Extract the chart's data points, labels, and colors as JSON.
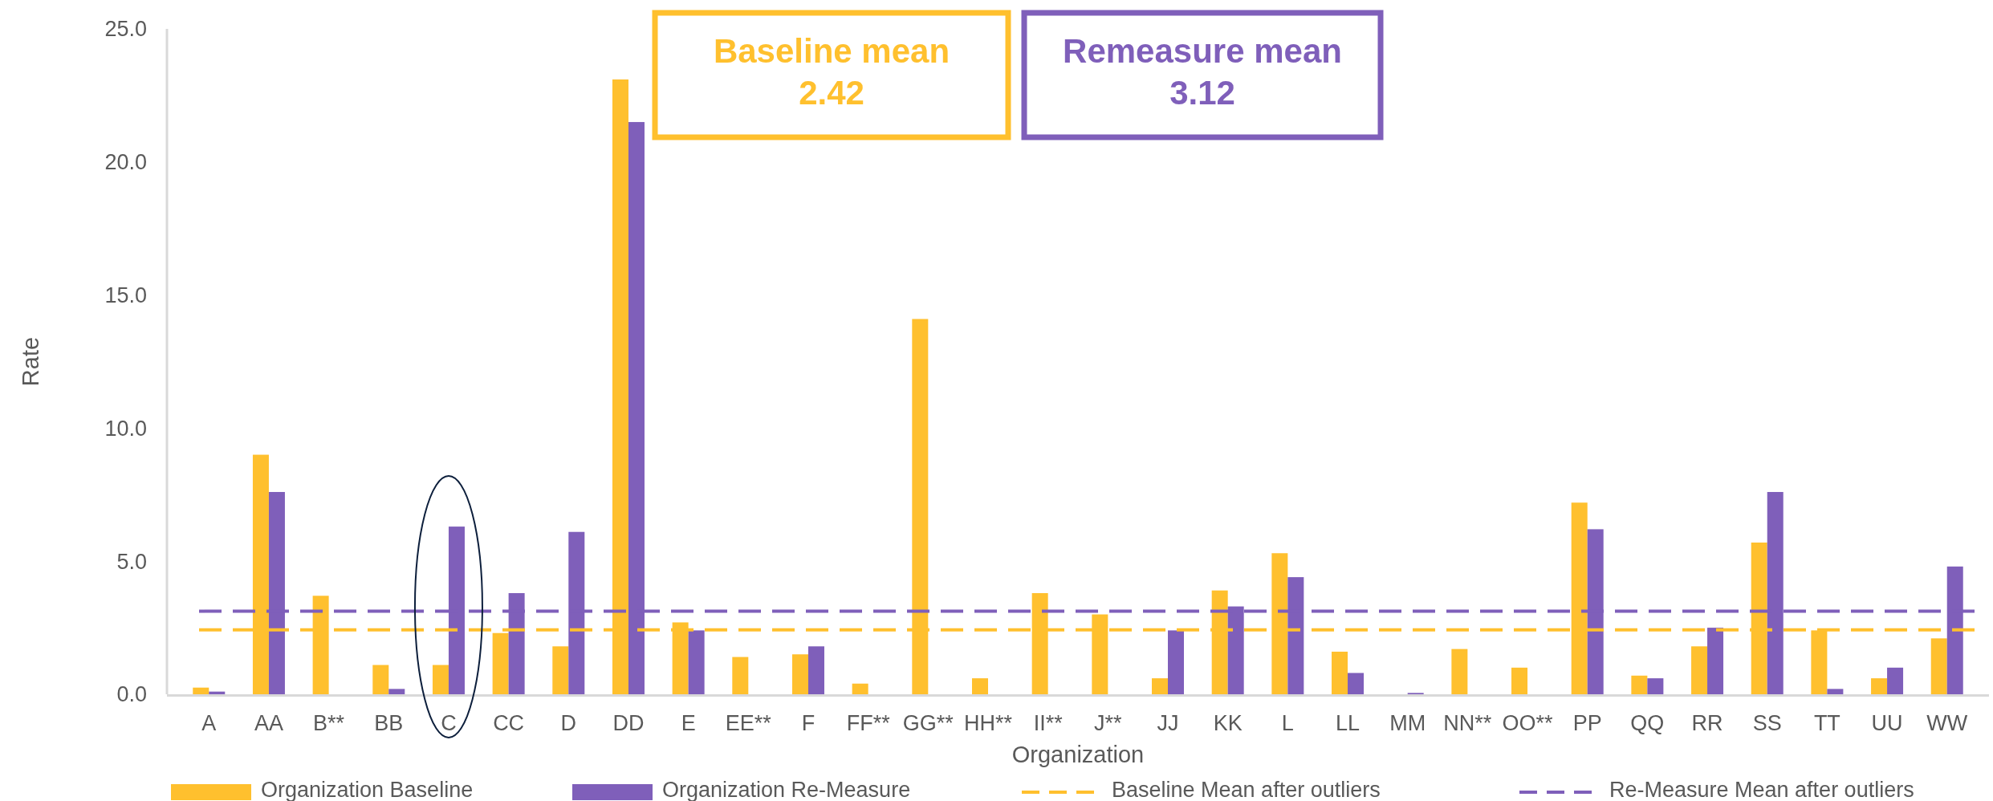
{
  "chart_data": {
    "type": "bar",
    "xlabel": "Organization",
    "ylabel": "Rate",
    "categories": [
      "A",
      "AA",
      "B**",
      "BB",
      "C",
      "CC",
      "D",
      "DD",
      "E",
      "EE**",
      "F",
      "FF**",
      "GG**",
      "HH**",
      "II**",
      "J**",
      "JJ",
      "KK",
      "L",
      "LL",
      "MM",
      "NN**",
      "OO**",
      "PP",
      "QQ",
      "RR",
      "SS",
      "TT",
      "UU",
      "WW"
    ],
    "series": [
      {
        "name": "Organization Baseline",
        "color": "#ffc02e",
        "values": [
          0.25,
          9.0,
          3.7,
          1.1,
          1.1,
          2.3,
          1.8,
          23.1,
          2.7,
          1.4,
          1.5,
          0.4,
          14.1,
          0.6,
          3.8,
          3.0,
          0.6,
          3.9,
          5.3,
          1.6,
          null,
          1.7,
          1.0,
          7.2,
          0.7,
          1.8,
          5.7,
          2.4,
          0.6,
          2.1
        ]
      },
      {
        "name": "Organization Re-Measure",
        "color": "#7f5fba",
        "values": [
          0.1,
          7.6,
          null,
          0.2,
          6.3,
          3.8,
          6.1,
          21.5,
          2.4,
          null,
          1.8,
          null,
          null,
          null,
          null,
          null,
          2.4,
          3.3,
          4.4,
          0.8,
          0.05,
          null,
          null,
          6.2,
          0.6,
          2.5,
          7.6,
          0.2,
          1.0,
          4.8
        ]
      }
    ],
    "ref_lines": [
      {
        "axis": "y",
        "value": 2.42,
        "label": "Baseline Mean after outliers",
        "color": "#ffc02e",
        "line_style": "dashed"
      },
      {
        "axis": "y",
        "value": 3.12,
        "label": "Re-Measure Mean after outliers",
        "color": "#7f5fba",
        "line_style": "dashed"
      }
    ],
    "annotations": [
      "Baseline mean\n2.42",
      "Remeasure mean\n3.12"
    ],
    "ylim": [
      0,
      25
    ],
    "yticks": [
      {
        "value": 0,
        "label": "0.0"
      },
      {
        "value": 5,
        "label": "5.0"
      },
      {
        "value": 10,
        "label": "10.0"
      },
      {
        "value": 15,
        "label": "15.0"
      },
      {
        "value": 20,
        "label": "20.0"
      },
      {
        "value": 25,
        "label": "25.0"
      }
    ],
    "grid": false,
    "legend": "bottom"
  }
}
